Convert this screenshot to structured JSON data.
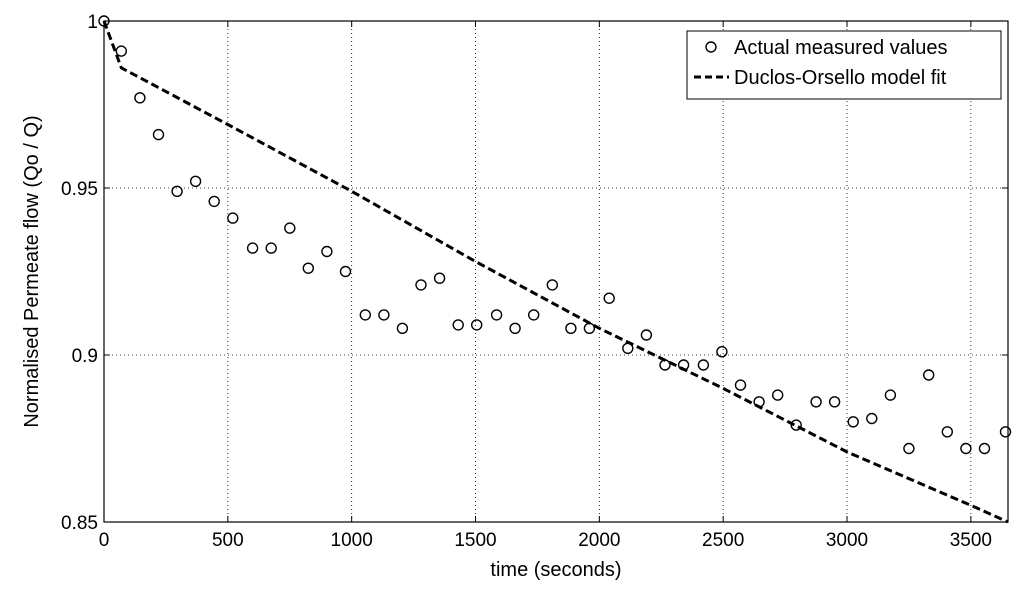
{
  "chart_data": {
    "type": "scatter",
    "title": "",
    "xlabel": "time (seconds)",
    "ylabel": "Normalised Permeate flow (Qo / Q)",
    "xlim": [
      0,
      3650
    ],
    "ylim": [
      0.85,
      1.0
    ],
    "grid": true,
    "legend_position": "top-right",
    "x_ticks": [
      "0",
      "500",
      "1000",
      "1500",
      "2000",
      "2500",
      "3000",
      "3500"
    ],
    "x_tick_values": [
      0,
      500,
      1000,
      1500,
      2000,
      2500,
      3000,
      3500
    ],
    "y_ticks": [
      "0.85",
      "0.9",
      "0.95",
      "1"
    ],
    "y_tick_values": [
      0.85,
      0.9,
      0.95,
      1.0
    ],
    "series": [
      {
        "name": "Actual measured values",
        "style": "circle-markers",
        "color": "#000000",
        "x": [
          0,
          70,
          145,
          220,
          295,
          370,
          445,
          520,
          600,
          675,
          750,
          825,
          900,
          975,
          1055,
          1130,
          1205,
          1280,
          1355,
          1430,
          1505,
          1585,
          1660,
          1735,
          1810,
          1885,
          1960,
          2040,
          2115,
          2190,
          2265,
          2340,
          2420,
          2495,
          2570,
          2645,
          2720,
          2795,
          2875,
          2950,
          3025,
          3100,
          3175,
          3250,
          3330,
          3405,
          3480,
          3555,
          3640
        ],
        "y": [
          1.0,
          0.991,
          0.977,
          0.966,
          0.949,
          0.952,
          0.946,
          0.941,
          0.932,
          0.932,
          0.938,
          0.926,
          0.931,
          0.925,
          0.912,
          0.912,
          0.908,
          0.921,
          0.923,
          0.909,
          0.909,
          0.912,
          0.908,
          0.912,
          0.921,
          0.908,
          0.908,
          0.917,
          0.902,
          0.906,
          0.897,
          0.897,
          0.897,
          0.901,
          0.891,
          0.886,
          0.888,
          0.879,
          0.886,
          0.886,
          0.88,
          0.881,
          0.888,
          0.872,
          0.894,
          0.877,
          0.872,
          0.872,
          0.877
        ]
      },
      {
        "name": "Duclos-Orsello model fit",
        "style": "dashed-line",
        "color": "#000000",
        "x": [
          0,
          70,
          500,
          1000,
          1500,
          2000,
          2500,
          3000,
          3500,
          3650
        ],
        "y": [
          1.0,
          0.986,
          0.969,
          0.949,
          0.928,
          0.908,
          0.89,
          0.871,
          0.855,
          0.85
        ]
      }
    ]
  }
}
